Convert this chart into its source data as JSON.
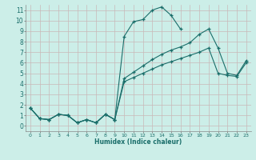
{
  "xlabel": "Humidex (Indice chaleur)",
  "bg_color": "#cceee8",
  "grid_color": "#c9b8b8",
  "line_color": "#1a6e6a",
  "xlim": [
    -0.5,
    23.5
  ],
  "ylim": [
    -0.5,
    11.5
  ],
  "xticks": [
    0,
    1,
    2,
    3,
    4,
    5,
    6,
    7,
    8,
    9,
    10,
    11,
    12,
    13,
    14,
    15,
    16,
    17,
    18,
    19,
    20,
    21,
    22,
    23
  ],
  "yticks": [
    0,
    1,
    2,
    3,
    4,
    5,
    6,
    7,
    8,
    9,
    10,
    11
  ],
  "series": [
    {
      "x": [
        0,
        1,
        2,
        3,
        4,
        5,
        6,
        7,
        8,
        9,
        10,
        11,
        12,
        13,
        14,
        15,
        16
      ],
      "y": [
        1.7,
        0.7,
        0.6,
        1.1,
        1.0,
        0.3,
        0.6,
        0.3,
        1.1,
        0.6,
        8.5,
        9.9,
        10.1,
        11.0,
        11.3,
        10.5,
        9.2
      ]
    },
    {
      "x": [
        0,
        1,
        2,
        3,
        4,
        5,
        6,
        7,
        8,
        9,
        10,
        11,
        12,
        13,
        14,
        15,
        16,
        17,
        18,
        19,
        20,
        21,
        22,
        23
      ],
      "y": [
        1.7,
        0.7,
        0.6,
        1.1,
        1.0,
        0.3,
        0.6,
        0.3,
        1.1,
        0.6,
        4.5,
        5.1,
        5.7,
        6.3,
        6.8,
        7.2,
        7.5,
        7.9,
        8.7,
        9.2,
        7.4,
        5.0,
        4.8,
        6.2
      ]
    },
    {
      "x": [
        0,
        1,
        2,
        3,
        4,
        5,
        6,
        7,
        8,
        9,
        10,
        11,
        12,
        13,
        14,
        15,
        16,
        17,
        18,
        19,
        20,
        21,
        22,
        23
      ],
      "y": [
        1.7,
        0.7,
        0.6,
        1.1,
        1.0,
        0.3,
        0.6,
        0.3,
        1.1,
        0.6,
        4.2,
        4.6,
        5.0,
        5.4,
        5.8,
        6.1,
        6.4,
        6.7,
        7.0,
        7.4,
        5.0,
        4.8,
        4.7,
        6.0
      ]
    }
  ]
}
